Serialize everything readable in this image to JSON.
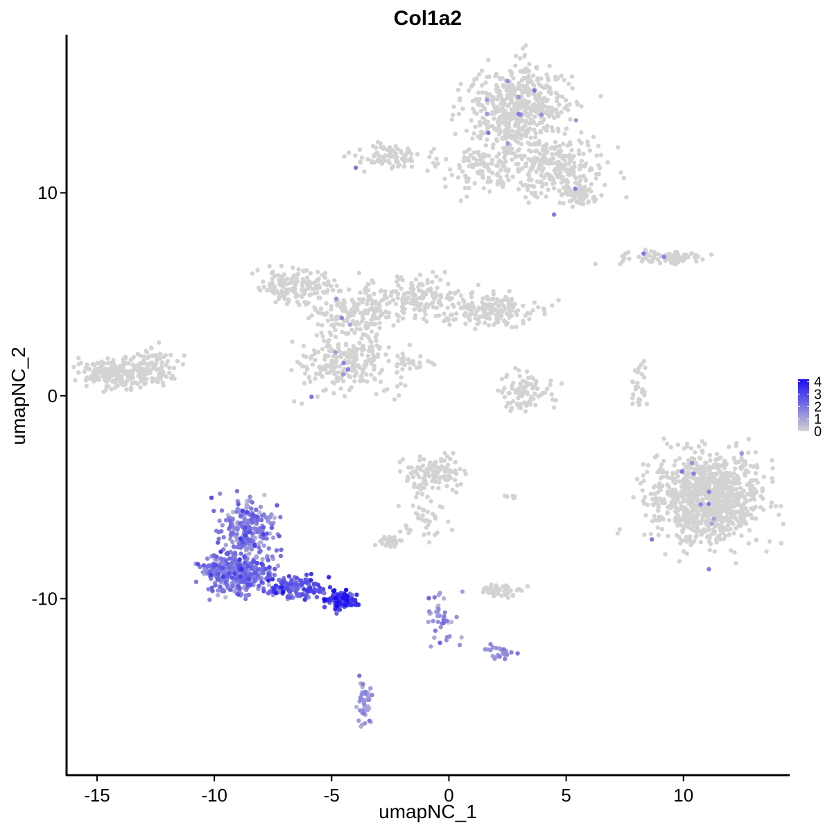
{
  "chart_data": {
    "type": "scatter",
    "title": "Col1a2",
    "xlabel": "umapNC_1",
    "ylabel": "umapNC_2",
    "xlim": [
      -16.3,
      14.5
    ],
    "ylim": [
      -18.7,
      17.8
    ],
    "xticks": [
      -15,
      -10,
      -5,
      0,
      5,
      10
    ],
    "xtick_labels": [
      "-15",
      "-10",
      "-5",
      "0",
      "5",
      "10"
    ],
    "yticks": [
      10,
      0,
      -10
    ],
    "ytick_labels": [
      "10",
      "0",
      "-10"
    ],
    "grid": false,
    "legend": {
      "placement": "right",
      "type": "colorbar",
      "ticks": [
        "4",
        "3",
        "2",
        "1",
        "0"
      ],
      "min": 0,
      "max": 4.2
    },
    "colors": {
      "low": "#d3d3d3",
      "high": "#1b0ff0",
      "axis": "#000000"
    },
    "clusters": [
      {
        "cx": 2.9,
        "cy": 14.2,
        "sx": 1.5,
        "sy": 1.4,
        "n": 520,
        "expr": 0,
        "spread": 0
      },
      {
        "cx": 4.4,
        "cy": 11.3,
        "sx": 1.6,
        "sy": 1.0,
        "n": 260,
        "expr": 0,
        "spread": 0
      },
      {
        "cx": 5.6,
        "cy": 9.9,
        "sx": 0.6,
        "sy": 0.4,
        "n": 70,
        "expr": 0,
        "spread": 0
      },
      {
        "cx": 1.4,
        "cy": 11.3,
        "sx": 1.2,
        "sy": 0.8,
        "n": 110,
        "expr": 0,
        "spread": 0
      },
      {
        "cx": -2.5,
        "cy": 11.8,
        "sx": 1.0,
        "sy": 0.4,
        "n": 90,
        "expr": 0,
        "spread": 0
      },
      {
        "cx": 9.1,
        "cy": 6.8,
        "sx": 1.2,
        "sy": 0.25,
        "n": 100,
        "expr": 0,
        "spread": 0
      },
      {
        "cx": -6.5,
        "cy": 5.4,
        "sx": 1.2,
        "sy": 0.6,
        "n": 150,
        "expr": 0,
        "spread": 0
      },
      {
        "cx": -4.4,
        "cy": 4.0,
        "sx": 1.0,
        "sy": 0.7,
        "n": 100,
        "expr": 0,
        "spread": 0
      },
      {
        "cx": -1.3,
        "cy": 4.8,
        "sx": 1.3,
        "sy": 0.8,
        "n": 160,
        "expr": 0,
        "spread": 0
      },
      {
        "cx": 1.9,
        "cy": 4.2,
        "sx": 1.2,
        "sy": 0.6,
        "n": 170,
        "expr": 0,
        "spread": 0
      },
      {
        "cx": -4.4,
        "cy": 1.6,
        "sx": 1.4,
        "sy": 1.0,
        "n": 230,
        "expr": 0,
        "spread": 0
      },
      {
        "cx": -3.4,
        "cy": 4.2,
        "sx": 0.5,
        "sy": 1.4,
        "n": 60,
        "expr": 0,
        "spread": 0
      },
      {
        "cx": -1.7,
        "cy": 1.6,
        "sx": 0.6,
        "sy": 0.35,
        "n": 20,
        "expr": 0,
        "spread": 0
      },
      {
        "cx": -14.2,
        "cy": 1.1,
        "sx": 1.0,
        "sy": 0.55,
        "n": 200,
        "expr": 0,
        "spread": 0
      },
      {
        "cx": -12.5,
        "cy": 1.4,
        "sx": 0.7,
        "sy": 0.6,
        "n": 80,
        "expr": 0,
        "spread": 0
      },
      {
        "cx": 3.3,
        "cy": 0.2,
        "sx": 0.8,
        "sy": 0.7,
        "n": 90,
        "expr": 0,
        "spread": 0
      },
      {
        "cx": 8.1,
        "cy": 0.4,
        "sx": 0.25,
        "sy": 0.9,
        "n": 30,
        "expr": 0,
        "spread": 0
      },
      {
        "cx": 11.0,
        "cy": -5.0,
        "sx": 1.6,
        "sy": 1.5,
        "n": 1050,
        "expr": 0,
        "spread": 0
      },
      {
        "cx": -0.6,
        "cy": -3.8,
        "sx": 0.9,
        "sy": 0.6,
        "n": 110,
        "expr": 0,
        "spread": 0
      },
      {
        "cx": -1.0,
        "cy": -5.8,
        "sx": 0.6,
        "sy": 1.0,
        "n": 40,
        "expr": 0,
        "spread": 0
      },
      {
        "cx": -2.5,
        "cy": -7.2,
        "sx": 0.4,
        "sy": 0.2,
        "n": 35,
        "expr": 0,
        "spread": 0
      },
      {
        "cx": 2.2,
        "cy": -9.6,
        "sx": 0.5,
        "sy": 0.25,
        "n": 55,
        "expr": 0,
        "spread": 0
      },
      {
        "cx": 2.7,
        "cy": -5.0,
        "sx": 0.3,
        "sy": 0.1,
        "n": 8,
        "expr": 0,
        "spread": 0
      },
      {
        "cx": -8.6,
        "cy": -6.6,
        "sx": 0.8,
        "sy": 0.9,
        "n": 230,
        "expr": 1.6,
        "spread": 0.6
      },
      {
        "cx": -9.0,
        "cy": -8.7,
        "sx": 1.0,
        "sy": 0.75,
        "n": 380,
        "expr": 1.8,
        "spread": 0.6
      },
      {
        "cx": -6.5,
        "cy": -9.5,
        "sx": 0.8,
        "sy": 0.4,
        "n": 130,
        "expr": 2.4,
        "spread": 0.6
      },
      {
        "cx": -4.6,
        "cy": -10.1,
        "sx": 0.5,
        "sy": 0.3,
        "n": 110,
        "expr": 3.2,
        "spread": 0.7
      },
      {
        "cx": -3.6,
        "cy": -15.2,
        "sx": 0.25,
        "sy": 0.8,
        "n": 45,
        "expr": 1.2,
        "spread": 0.4
      },
      {
        "cx": -0.3,
        "cy": -10.8,
        "sx": 0.5,
        "sy": 1.2,
        "n": 40,
        "expr": 1.2,
        "spread": 0.4
      },
      {
        "cx": 2.2,
        "cy": -12.6,
        "sx": 0.4,
        "sy": 0.2,
        "n": 25,
        "expr": 1.3,
        "spread": 0.4
      }
    ]
  }
}
